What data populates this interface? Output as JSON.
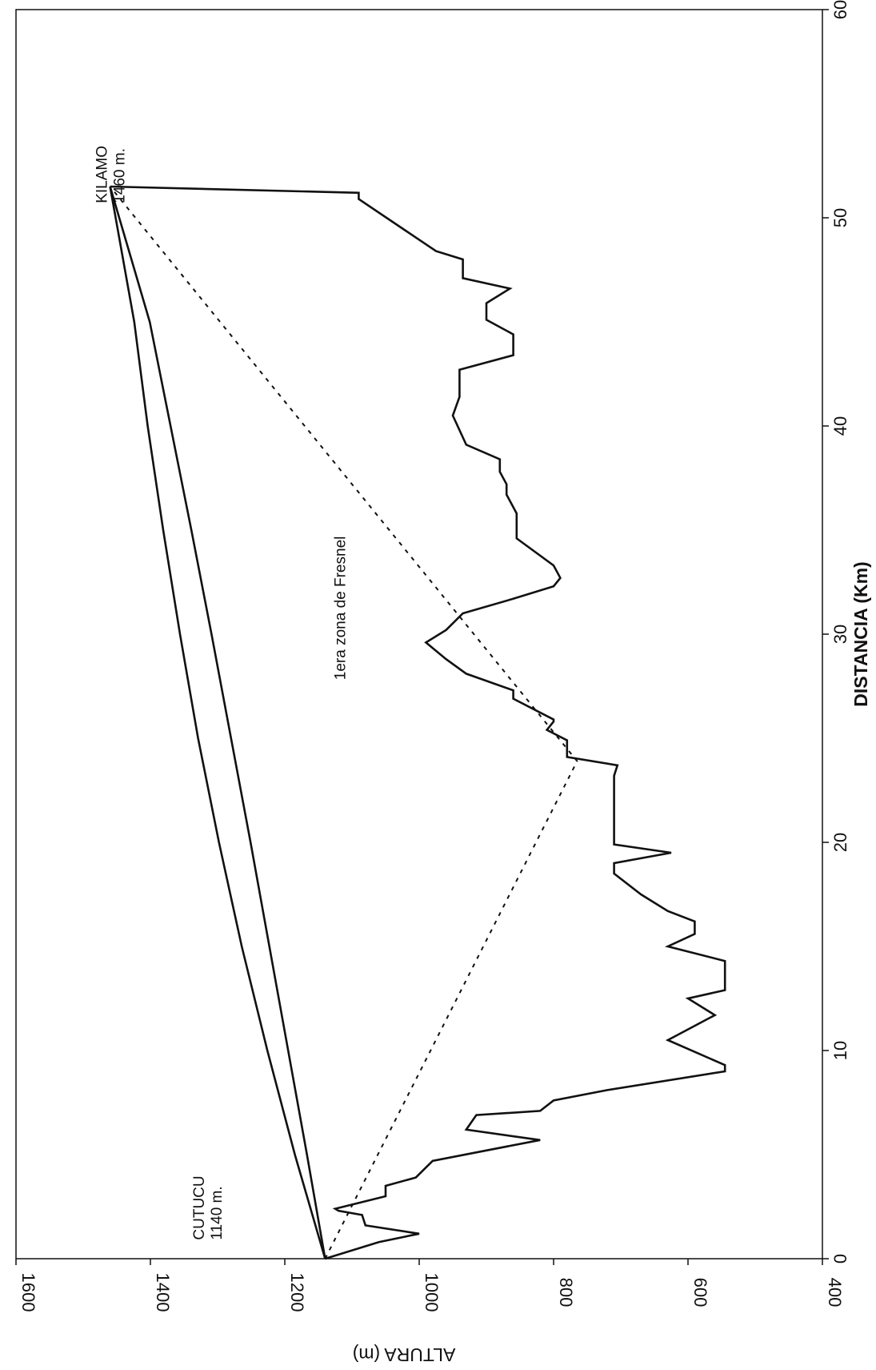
{
  "chart_data": {
    "type": "line",
    "orientation": "rotated-90-clockwise",
    "xlabel": "DISTANCIA (Km)",
    "ylabel": "ALTURA (m)",
    "xlim": [
      0,
      60
    ],
    "ylim": [
      400,
      1600
    ],
    "xticks": [
      "0",
      "10",
      "20",
      "30",
      "40",
      "50",
      "60"
    ],
    "yticks": [
      "1600",
      "1400",
      "1200",
      "1000",
      "800",
      "600",
      "400"
    ],
    "grid": false,
    "series": [
      {
        "style": "solid",
        "x": [
          0,
          0.8,
          1.2,
          1.6,
          2.1,
          2.3,
          2.4,
          3.0,
          3.5,
          3.9,
          4.7,
          5.7,
          6.2,
          6.9,
          7.1,
          7.6,
          8.1,
          9.0,
          9.3,
          10.5,
          11.7,
          12.5,
          12.9,
          14.3,
          15.0,
          15.6,
          16.2,
          16.7,
          17.5,
          18.5,
          19.0,
          19.5,
          19.9,
          20.2,
          23.2,
          23.7,
          24.1,
          24.9,
          25.4,
          25.8,
          25.9,
          26.9,
          27.3,
          28.1,
          28.8,
          29.6,
          30.2,
          31.0,
          31.7,
          32.3,
          32.7,
          33.3,
          34.6,
          35.8,
          36.7,
          37.2,
          37.8,
          38.4,
          39.1,
          40.5,
          41.4,
          42.7,
          43.4,
          44.4,
          45.1,
          45.9,
          46.6,
          47.1,
          48.0,
          48.4,
          50.9,
          51.2,
          51.5
        ],
        "y": [
          1140,
          1060,
          1000,
          1080,
          1085,
          1120,
          1125,
          1050,
          1050,
          1005,
          980,
          820,
          930,
          915,
          820,
          800,
          720,
          545,
          545,
          630,
          560,
          600,
          545,
          545,
          630,
          590,
          590,
          630,
          670,
          710,
          710,
          625,
          710,
          710,
          710,
          705,
          780,
          780,
          810,
          800,
          800,
          860,
          860,
          930,
          960,
          990,
          960,
          935,
          860,
          800,
          790,
          800,
          855,
          855,
          870,
          870,
          880,
          880,
          930,
          950,
          940,
          940,
          860,
          860,
          900,
          900,
          865,
          935,
          935,
          975,
          1090,
          1090,
          1460
        ]
      },
      {
        "style": "dotted",
        "x": [
          0,
          23.9,
          51.5
        ],
        "y": [
          1140,
          765,
          1460
        ]
      },
      {
        "style": "solid",
        "x": [
          0,
          5,
          10,
          15,
          20,
          25,
          30,
          35,
          40,
          45,
          51.5
        ],
        "y": [
          1140,
          1167,
          1195,
          1223,
          1251,
          1280,
          1309,
          1339,
          1370,
          1401,
          1460
        ]
      },
      {
        "style": "solid",
        "x": [
          0,
          5,
          10,
          15,
          20,
          25,
          30,
          35,
          40,
          45,
          51.5
        ],
        "y": [
          1140,
          1185,
          1226,
          1264,
          1298,
          1329,
          1356,
          1381,
          1404,
          1424,
          1460
        ]
      }
    ],
    "annotations": [
      {
        "id": "cutucu",
        "lines": [
          "CUTUCU",
          "1140 m."
        ],
        "x": 0.9,
        "y": 1320
      },
      {
        "id": "kilamo",
        "lines": [
          "KILAMO",
          "1460 m."
        ],
        "x": 50.7,
        "y": 1465
      },
      {
        "id": "fresnel",
        "lines": [
          "1era zona de Fresnel"
        ],
        "x": 27.8,
        "y": 1110
      }
    ]
  }
}
